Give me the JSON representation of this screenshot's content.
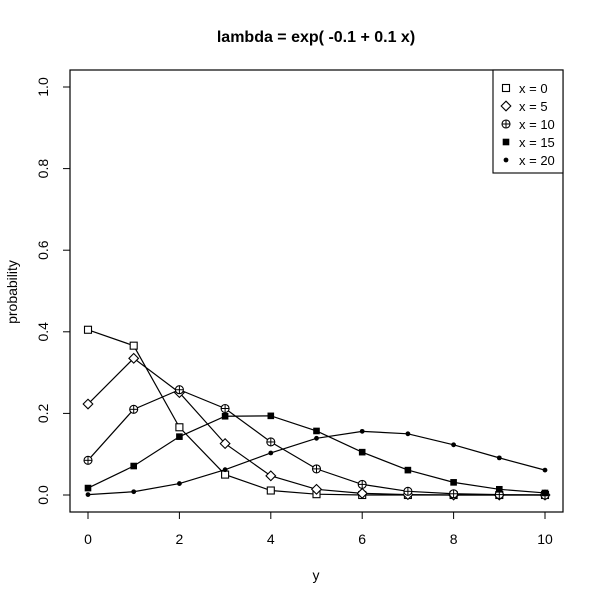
{
  "chart_data": {
    "type": "line",
    "title": "lambda = exp( -0.1 + 0.1 x)",
    "xlabel": "y",
    "ylabel": "probability",
    "xlim": [
      0,
      10
    ],
    "ylim": [
      0,
      1
    ],
    "x_ticks": [
      0,
      2,
      4,
      6,
      8,
      10
    ],
    "y_ticks": [
      0.0,
      0.2,
      0.4,
      0.6,
      0.8,
      1.0
    ],
    "x_tick_labels": [
      "0",
      "2",
      "4",
      "6",
      "8",
      "10"
    ],
    "y_tick_labels": [
      "0.0",
      "0.2",
      "0.4",
      "0.6",
      "0.8",
      "1.0"
    ],
    "grid": false,
    "legend_position": "top-right",
    "x": [
      0,
      1,
      2,
      3,
      4,
      5,
      6,
      7,
      8,
      9,
      10
    ],
    "series": [
      {
        "name": "x = 0",
        "marker": "open-square",
        "values": [
          0.405,
          0.366,
          0.166,
          0.05,
          0.011,
          0.002,
          0.0,
          0.0,
          0.0,
          0.0,
          0.0
        ]
      },
      {
        "name": "x = 5",
        "marker": "open-diamond",
        "values": [
          0.223,
          0.335,
          0.251,
          0.126,
          0.047,
          0.014,
          0.004,
          0.001,
          0.0,
          0.0,
          0.0
        ]
      },
      {
        "name": "x = 10",
        "marker": "circle-plus",
        "values": [
          0.085,
          0.21,
          0.258,
          0.212,
          0.13,
          0.064,
          0.026,
          0.009,
          0.003,
          0.001,
          0.0
        ]
      },
      {
        "name": "x = 15",
        "marker": "filled-square",
        "values": [
          0.017,
          0.071,
          0.143,
          0.193,
          0.194,
          0.157,
          0.105,
          0.061,
          0.031,
          0.014,
          0.005
        ]
      },
      {
        "name": "x = 20",
        "marker": "filled-circle",
        "values": [
          0.001,
          0.008,
          0.028,
          0.062,
          0.103,
          0.139,
          0.156,
          0.15,
          0.123,
          0.091,
          0.061
        ]
      }
    ]
  }
}
